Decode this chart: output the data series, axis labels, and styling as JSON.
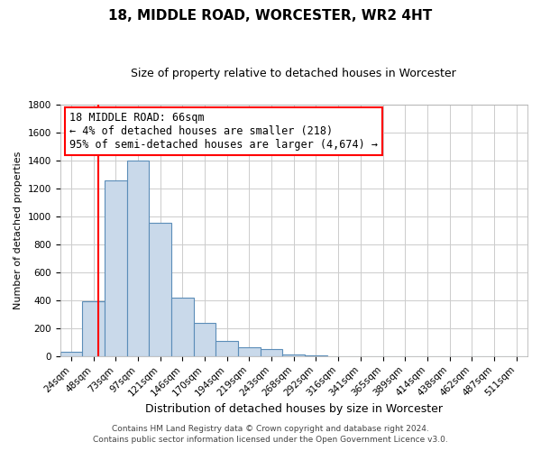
{
  "title": "18, MIDDLE ROAD, WORCESTER, WR2 4HT",
  "subtitle": "Size of property relative to detached houses in Worcester",
  "xlabel": "Distribution of detached houses by size in Worcester",
  "ylabel": "Number of detached properties",
  "bin_labels": [
    "24sqm",
    "48sqm",
    "73sqm",
    "97sqm",
    "121sqm",
    "146sqm",
    "170sqm",
    "194sqm",
    "219sqm",
    "243sqm",
    "268sqm",
    "292sqm",
    "316sqm",
    "341sqm",
    "365sqm",
    "389sqm",
    "414sqm",
    "438sqm",
    "462sqm",
    "487sqm",
    "511sqm"
  ],
  "bar_values": [
    30,
    395,
    1255,
    1395,
    950,
    415,
    235,
    110,
    65,
    50,
    15,
    5,
    2,
    2,
    0,
    0,
    0,
    0,
    0,
    0,
    0
  ],
  "bar_color": "#c9d9ea",
  "bar_edge_color": "#5b8db8",
  "annotation_line1": "18 MIDDLE ROAD: 66sqm",
  "annotation_line2": "← 4% of detached houses are smaller (218)",
  "annotation_line3": "95% of semi-detached houses are larger (4,674) →",
  "annotation_box_color": "white",
  "annotation_box_edge_color": "red",
  "ylim": [
    0,
    1800
  ],
  "yticks": [
    0,
    200,
    400,
    600,
    800,
    1000,
    1200,
    1400,
    1600,
    1800
  ],
  "grid_color": "#cccccc",
  "footer_line1": "Contains HM Land Registry data © Crown copyright and database right 2024.",
  "footer_line2": "Contains public sector information licensed under the Open Government Licence v3.0.",
  "title_fontsize": 11,
  "subtitle_fontsize": 9,
  "xlabel_fontsize": 9,
  "ylabel_fontsize": 8,
  "tick_fontsize": 7.5,
  "footer_fontsize": 6.5,
  "annotation_fontsize": 8.5
}
